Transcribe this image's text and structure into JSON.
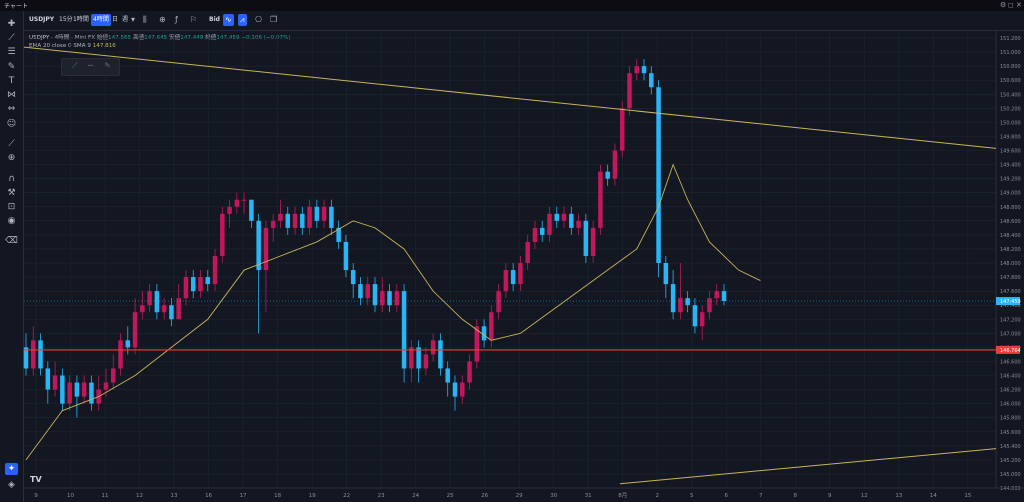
{
  "window": {
    "title": "チャート",
    "controls": [
      "⚙",
      "◻",
      "✕"
    ]
  },
  "toolbar": {
    "symbol": "USDJPY",
    "interval_15m": "15分",
    "interval_1h": "1時間",
    "interval_4h": "4時間",
    "interval_day": "日",
    "interval_week": "週",
    "bid": "Bid"
  },
  "legend": {
    "symbol": "USDJPY",
    "interval": "4時間",
    "source": "Mini FX",
    "open_label": "始値",
    "open": "147.565",
    "high_label": "高値",
    "high": "147.645",
    "low_label": "安値",
    "low": "147.449",
    "close_label": "終値",
    "close": "147.459",
    "change": "−0.106 (−0.07%)",
    "ema_label": "EMA 20 close 0 SMA 9",
    "ema_value": "147.816"
  },
  "left_tools": [
    "crosshair-icon",
    "trendline-icon",
    "fib-icon",
    "brush-icon",
    "text-icon",
    "pattern-icon",
    "measure-icon",
    "emoji-icon",
    "ruler-icon",
    "zoom-icon",
    "magnet-icon",
    "lock-draw-icon",
    "lock-icon",
    "eye-icon",
    "trash-icon",
    "favorite-icon",
    "layers-icon"
  ],
  "colors": {
    "background": "#131722",
    "up": "#c2185b",
    "down": "#29b6f6",
    "ema": "#c9b458",
    "support": "#ef3b3b",
    "trendline": "#c9b458",
    "grid": "#1f2533"
  },
  "chart_data": {
    "type": "candlestick",
    "title": "",
    "y_ticks": [
      "151.200",
      "151.000",
      "150.800",
      "150.600",
      "150.400",
      "150.200",
      "150.000",
      "149.800",
      "149.600",
      "149.400",
      "149.200",
      "149.000",
      "148.800",
      "148.600",
      "148.400",
      "148.200",
      "148.000",
      "147.800",
      "147.600",
      "147.400",
      "147.200",
      "147.000",
      "146.800",
      "146.600",
      "146.400",
      "146.200",
      "146.000",
      "145.800",
      "145.600",
      "145.400",
      "145.200",
      "145.000",
      "144.800"
    ],
    "x_ticks": [
      "9",
      "10",
      "11",
      "12",
      "13",
      "16",
      "17",
      "18",
      "19",
      "22",
      "23",
      "24",
      "25",
      "26",
      "29",
      "30",
      "31",
      "8月",
      "2",
      "5",
      "6",
      "7",
      "8",
      "9",
      "12",
      "13",
      "14",
      "15"
    ],
    "ylim": [
      144.8,
      151.3
    ],
    "current_price": "147.459",
    "support_level": "146.764",
    "candles": [
      [
        146.8,
        146.5,
        147.0,
        146.4
      ],
      [
        146.5,
        146.9,
        147.1,
        146.4
      ],
      [
        146.9,
        146.5,
        147.0,
        146.4
      ],
      [
        146.5,
        146.2,
        146.6,
        146.0
      ],
      [
        146.2,
        146.4,
        146.6,
        146.1
      ],
      [
        146.4,
        146.0,
        146.5,
        145.9
      ],
      [
        146.0,
        146.3,
        146.4,
        145.9
      ],
      [
        146.3,
        146.1,
        146.4,
        145.8
      ],
      [
        146.1,
        146.3,
        146.4,
        146.0
      ],
      [
        146.3,
        146.0,
        146.4,
        145.9
      ],
      [
        146.0,
        146.2,
        146.4,
        145.9
      ],
      [
        146.2,
        146.3,
        146.5,
        146.1
      ],
      [
        146.3,
        146.5,
        146.7,
        146.2
      ],
      [
        146.5,
        146.9,
        147.0,
        146.4
      ],
      [
        146.9,
        146.8,
        147.1,
        146.7
      ],
      [
        146.8,
        147.3,
        147.5,
        146.7
      ],
      [
        147.3,
        147.4,
        147.6,
        147.2
      ],
      [
        147.4,
        147.6,
        147.7,
        147.3
      ],
      [
        147.6,
        147.3,
        147.7,
        147.2
      ],
      [
        147.3,
        147.4,
        147.5,
        147.2
      ],
      [
        147.4,
        147.2,
        147.5,
        147.1
      ],
      [
        147.2,
        147.5,
        147.7,
        147.2
      ],
      [
        147.5,
        147.8,
        147.9,
        147.4
      ],
      [
        147.8,
        147.6,
        147.9,
        147.5
      ],
      [
        147.6,
        147.8,
        147.9,
        147.5
      ],
      [
        147.8,
        147.7,
        147.9,
        147.6
      ],
      [
        147.7,
        148.1,
        148.2,
        147.6
      ],
      [
        148.1,
        148.7,
        148.8,
        148.0
      ],
      [
        148.7,
        148.8,
        148.9,
        148.5
      ],
      [
        148.8,
        148.9,
        149.0,
        148.7
      ],
      [
        148.9,
        148.9,
        149.0,
        148.7
      ],
      [
        148.9,
        148.6,
        148.9,
        148.5
      ],
      [
        148.6,
        147.9,
        148.7,
        147.0
      ],
      [
        147.9,
        148.5,
        148.6,
        147.3
      ],
      [
        148.5,
        148.6,
        148.7,
        148.3
      ],
      [
        148.6,
        148.7,
        148.9,
        148.5
      ],
      [
        148.7,
        148.5,
        148.8,
        148.4
      ],
      [
        148.5,
        148.7,
        148.8,
        148.4
      ],
      [
        148.7,
        148.5,
        148.8,
        148.4
      ],
      [
        148.5,
        148.8,
        148.9,
        148.4
      ],
      [
        148.8,
        148.6,
        148.9,
        148.5
      ],
      [
        148.6,
        148.8,
        148.9,
        148.5
      ],
      [
        148.8,
        148.5,
        148.9,
        148.4
      ],
      [
        148.5,
        148.3,
        148.6,
        148.2
      ],
      [
        148.3,
        147.9,
        148.4,
        147.8
      ],
      [
        147.9,
        147.7,
        148.0,
        147.5
      ],
      [
        147.7,
        147.5,
        147.8,
        147.4
      ],
      [
        147.5,
        147.7,
        147.8,
        147.4
      ],
      [
        147.7,
        147.4,
        147.8,
        147.3
      ],
      [
        147.4,
        147.6,
        147.8,
        147.3
      ],
      [
        147.6,
        147.4,
        147.7,
        147.3
      ],
      [
        147.4,
        147.6,
        147.7,
        147.3
      ],
      [
        147.6,
        146.5,
        147.7,
        146.3
      ],
      [
        146.5,
        146.8,
        146.9,
        146.3
      ],
      [
        146.8,
        146.5,
        146.9,
        146.3
      ],
      [
        146.5,
        146.7,
        146.8,
        146.4
      ],
      [
        146.7,
        146.9,
        147.0,
        146.6
      ],
      [
        146.9,
        146.5,
        147.0,
        146.4
      ],
      [
        146.5,
        146.3,
        146.6,
        146.1
      ],
      [
        146.3,
        146.1,
        146.4,
        145.9
      ],
      [
        146.1,
        146.3,
        146.4,
        146.0
      ],
      [
        146.3,
        146.6,
        146.7,
        146.2
      ],
      [
        146.6,
        147.1,
        147.2,
        146.5
      ],
      [
        147.1,
        146.9,
        147.2,
        146.8
      ],
      [
        146.9,
        147.3,
        147.4,
        146.8
      ],
      [
        147.3,
        147.6,
        147.7,
        147.2
      ],
      [
        147.6,
        147.9,
        148.0,
        147.5
      ],
      [
        147.9,
        147.7,
        148.0,
        147.6
      ],
      [
        147.7,
        148.0,
        148.1,
        147.6
      ],
      [
        148.0,
        148.3,
        148.4,
        147.9
      ],
      [
        148.3,
        148.5,
        148.6,
        148.2
      ],
      [
        148.5,
        148.4,
        148.6,
        148.3
      ],
      [
        148.4,
        148.7,
        148.8,
        148.3
      ],
      [
        148.7,
        148.6,
        148.8,
        148.5
      ],
      [
        148.6,
        148.7,
        148.8,
        148.5
      ],
      [
        148.7,
        148.5,
        148.8,
        148.4
      ],
      [
        148.5,
        148.6,
        148.7,
        148.4
      ],
      [
        148.6,
        148.1,
        148.7,
        148.0
      ],
      [
        148.1,
        148.5,
        148.6,
        148.0
      ],
      [
        148.5,
        149.3,
        149.4,
        148.4
      ],
      [
        149.3,
        149.2,
        149.4,
        149.1
      ],
      [
        149.2,
        149.6,
        149.7,
        149.1
      ],
      [
        149.6,
        150.2,
        150.3,
        149.5
      ],
      [
        150.2,
        150.7,
        150.8,
        150.1
      ],
      [
        150.7,
        150.8,
        150.9,
        150.6
      ],
      [
        150.8,
        150.7,
        150.9,
        150.6
      ],
      [
        150.7,
        150.5,
        150.8,
        150.4
      ],
      [
        150.5,
        148.0,
        150.6,
        147.8
      ],
      [
        148.0,
        147.7,
        148.1,
        147.5
      ],
      [
        147.7,
        147.3,
        147.9,
        147.2
      ],
      [
        147.3,
        147.5,
        148.0,
        147.2
      ],
      [
        147.5,
        147.4,
        147.6,
        147.3
      ],
      [
        147.4,
        147.1,
        147.5,
        147.0
      ],
      [
        147.1,
        147.3,
        147.4,
        146.9
      ],
      [
        147.3,
        147.5,
        147.6,
        147.2
      ],
      [
        147.5,
        147.6,
        147.7,
        147.4
      ],
      [
        147.6,
        147.46,
        147.7,
        147.4
      ]
    ],
    "ema": [
      [
        0,
        145.2
      ],
      [
        5,
        145.9
      ],
      [
        10,
        146.1
      ],
      [
        15,
        146.4
      ],
      [
        20,
        146.8
      ],
      [
        25,
        147.2
      ],
      [
        30,
        147.9
      ],
      [
        35,
        148.1
      ],
      [
        40,
        148.3
      ],
      [
        45,
        148.6
      ],
      [
        48,
        148.5
      ],
      [
        52,
        148.2
      ],
      [
        56,
        147.6
      ],
      [
        60,
        147.2
      ],
      [
        64,
        146.9
      ],
      [
        68,
        147.0
      ],
      [
        72,
        147.3
      ],
      [
        76,
        147.6
      ],
      [
        80,
        147.9
      ],
      [
        84,
        148.2
      ],
      [
        87,
        148.8
      ],
      [
        89,
        149.4
      ],
      [
        91,
        148.9
      ],
      [
        94,
        148.3
      ],
      [
        98,
        147.9
      ],
      [
        101,
        147.75
      ]
    ]
  }
}
